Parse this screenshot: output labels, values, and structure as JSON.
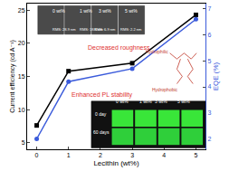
{
  "chart_data": {
    "type": "line",
    "x_label": "Lecithin (wt%)",
    "y_label": "Current efficiency (cd A⁻¹)",
    "y2_label": "EQE (%)",
    "x": [
      0,
      1,
      3,
      5
    ],
    "series": [
      {
        "color": "#000000",
        "marker": "square",
        "values": [
          7.6,
          15.8,
          17.0,
          24.3
        ]
      },
      {
        "color": "#3b5bdb",
        "marker": "circle",
        "axis": "y2",
        "values": [
          2.0,
          4.2,
          4.7,
          6.6
        ]
      }
    ],
    "xlim": [
      -0.3,
      5.3
    ],
    "xticks": [
      0,
      1,
      2,
      3,
      4,
      5
    ],
    "ylim": [
      4,
      26
    ],
    "yticks": [
      5,
      10,
      15,
      20,
      25
    ],
    "y2lim": [
      1.6,
      7.2
    ],
    "y2ticks": [
      2,
      3,
      4,
      5,
      6,
      7
    ],
    "grid": false,
    "annotations": [
      {
        "text": "Decreased roughness",
        "color": "#e03131"
      },
      {
        "text": "Enhanced PL stability",
        "color": "#e03131"
      }
    ],
    "afm_inset": {
      "labels": [
        "0 wt%",
        "1 wt%",
        "3 wt%",
        "5 wt%"
      ],
      "rms": [
        "RMS: 28.9 nm",
        "RMS: 18.6 nm",
        "RMS: 6.9 nm",
        "RMS: 2.2 nm"
      ]
    },
    "molecule_inset": {
      "labels": [
        "Hydrophilic",
        "Hydrophobic"
      ]
    },
    "pl_inset": {
      "labels": [
        "0 wt%",
        "1 wt%",
        "3 wt%",
        "5 wt%"
      ],
      "rows": [
        "0 day",
        "60 days"
      ]
    }
  }
}
